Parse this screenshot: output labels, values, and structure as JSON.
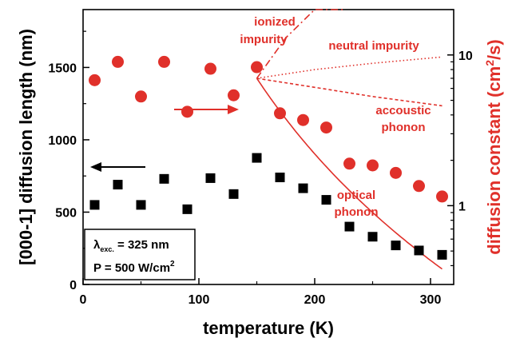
{
  "colors": {
    "left_series": "#000000",
    "right_series": "#e0302a",
    "model_lines": "#e0302a",
    "axis": "#000000"
  },
  "chart_data": {
    "type": "scatter",
    "xlabel": "temperature (K)",
    "ylabel_left": "[000-1] diffusion length (nm)",
    "ylabel_right": "diffusion constant (cm²/s)",
    "ylabel_right_parts": {
      "main": "diffusion constant (cm",
      "sup": "2",
      "tail": "/s)"
    },
    "xlim": [
      0,
      320
    ],
    "ylim_left": [
      0,
      1900
    ],
    "ylim_right_log": [
      0.3,
      20
    ],
    "y_right_scale": "log",
    "xticks": [
      "0",
      "100",
      "200",
      "300"
    ],
    "xtick_values": [
      0,
      100,
      200,
      300
    ],
    "yticks_left": [
      "0",
      "500",
      "1000",
      "1500"
    ],
    "ytick_left_values": [
      0,
      500,
      1000,
      1500
    ],
    "yticks_right": [
      "1",
      "10"
    ],
    "ytick_right_values": [
      1,
      10
    ],
    "series": [
      {
        "name": "diffusion length",
        "axis": "left",
        "marker": "square",
        "x": [
          10,
          30,
          50,
          70,
          90,
          110,
          130,
          150,
          170,
          190,
          210,
          230,
          250,
          270,
          290,
          310
        ],
        "y": [
          550,
          690,
          550,
          730,
          520,
          735,
          625,
          875,
          740,
          665,
          585,
          400,
          330,
          270,
          235,
          205
        ]
      },
      {
        "name": "diffusion constant",
        "axis": "right",
        "marker": "circle",
        "x": [
          10,
          30,
          50,
          70,
          90,
          110,
          130,
          150,
          170,
          190,
          210,
          230,
          250,
          270,
          290,
          310
        ],
        "y": [
          6.8,
          9.0,
          5.3,
          9.0,
          4.2,
          8.1,
          5.4,
          8.3,
          4.1,
          3.7,
          3.3,
          1.9,
          1.85,
          1.65,
          1.35,
          1.15
        ]
      }
    ],
    "model_curves": [
      {
        "style": "solid",
        "label": "optical phonon",
        "x": [
          150,
          175,
          200,
          225,
          250,
          275,
          300,
          310
        ],
        "y": [
          7.0,
          2.9,
          1.6,
          1.05,
          0.72,
          0.53,
          0.41,
          0.38
        ]
      },
      {
        "style": "dashdot",
        "label": "ionized impurity",
        "x": [
          150,
          175,
          200,
          225
        ],
        "y": [
          7.0,
          13,
          22,
          40
        ]
      },
      {
        "style": "dotted",
        "label": "neutral impurity",
        "x": [
          150,
          200,
          250,
          310
        ],
        "y": [
          7.0,
          8.0,
          8.8,
          9.7
        ]
      },
      {
        "style": "dashed",
        "label": "accoustic phonon",
        "x": [
          150,
          200,
          250,
          310
        ],
        "y": [
          7.0,
          6.1,
          5.3,
          4.6
        ]
      }
    ],
    "annotations": {
      "ionized_1": "ionized",
      "ionized_2": "impurity",
      "neutral": "neutral impurity",
      "accoustic_1": "accoustic",
      "accoustic_2": "phonon",
      "optical_1": "optical",
      "optical_2": "phonon"
    },
    "legend": {
      "lambda_symbol": "λ",
      "lambda_sub": "exc.",
      "lambda_value": " = 325 nm",
      "power_value": "P = 500 W/cm",
      "power_sup": "2"
    },
    "arrows": [
      {
        "direction": "left",
        "color": "black",
        "refers_to_axis": "left"
      },
      {
        "direction": "right",
        "color": "red",
        "refers_to_axis": "right"
      }
    ]
  }
}
